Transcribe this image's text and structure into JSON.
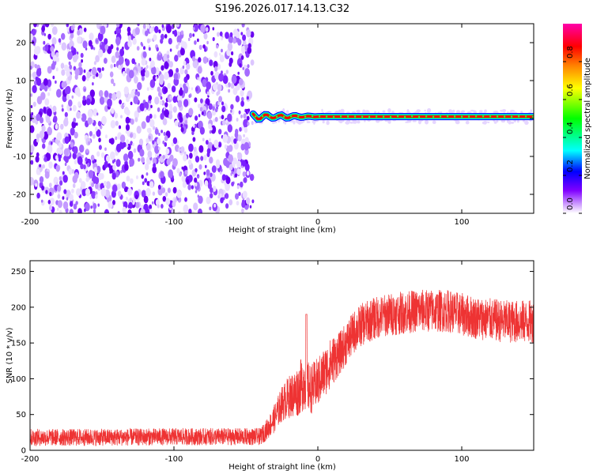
{
  "title": "S196.2026.017.14.13.C32",
  "chart_data": [
    {
      "type": "heatmap",
      "xlabel": "Height of straight line (km)",
      "ylabel": "Frequency (Hz)",
      "xlim": [
        -200,
        150
      ],
      "ylim": [
        -25,
        25
      ],
      "xticks": [
        -200,
        -100,
        0,
        100
      ],
      "xtick_labels": [
        "-200",
        "-100",
        "0",
        "100"
      ],
      "yticks": [
        -20,
        -10,
        0,
        10,
        20
      ],
      "ytick_labels": [
        "-20",
        "-10",
        "0",
        "10",
        "20"
      ],
      "noise_region_x": [
        -200,
        -45
      ],
      "signal_line_freq": 0.5,
      "signal_onset_x": -45,
      "colorbar": {
        "label": "Normalized spectral amplitude",
        "range": [
          0,
          1
        ],
        "ticks": [
          0.0,
          0.2,
          0.4,
          0.6,
          0.8
        ],
        "tick_labels": [
          "0.0",
          "0.2",
          "0.4",
          "0.6",
          "0.8"
        ],
        "colors": [
          "#ffffff",
          "#cc99ff",
          "#8000ff",
          "#0000ff",
          "#00ffff",
          "#00ff00",
          "#ffff00",
          "#ff8000",
          "#ff0000",
          "#ff00aa"
        ]
      }
    },
    {
      "type": "line",
      "xlabel": "Height of straight line (km)",
      "ylabel": "SNR (10 * v/v)",
      "xlim": [
        -200,
        150
      ],
      "ylim": [
        0,
        265
      ],
      "xticks": [
        -200,
        -100,
        0,
        100
      ],
      "xtick_labels": [
        "-200",
        "-100",
        "0",
        "100"
      ],
      "yticks": [
        0,
        50,
        100,
        150,
        200,
        250
      ],
      "ytick_labels": [
        "0",
        "50",
        "100",
        "150",
        "200",
        "250"
      ],
      "color": "#ee3333",
      "envelope": {
        "x": [
          -200,
          -150,
          -100,
          -60,
          -40,
          -35,
          -30,
          -25,
          -20,
          -15,
          -10,
          -5,
          0,
          5,
          10,
          15,
          20,
          25,
          30,
          40,
          50,
          70,
          90,
          110,
          130,
          150
        ],
        "mean": [
          18,
          18,
          19,
          19,
          19,
          30,
          45,
          65,
          75,
          80,
          95,
          85,
          95,
          110,
          125,
          135,
          150,
          165,
          175,
          185,
          190,
          195,
          195,
          185,
          180,
          180
        ],
        "spread": [
          12,
          12,
          12,
          12,
          12,
          15,
          20,
          25,
          30,
          35,
          40,
          35,
          35,
          35,
          35,
          30,
          30,
          30,
          30,
          30,
          30,
          30,
          30,
          30,
          30,
          30
        ]
      },
      "spike": {
        "x": -8,
        "y": 190
      }
    }
  ]
}
